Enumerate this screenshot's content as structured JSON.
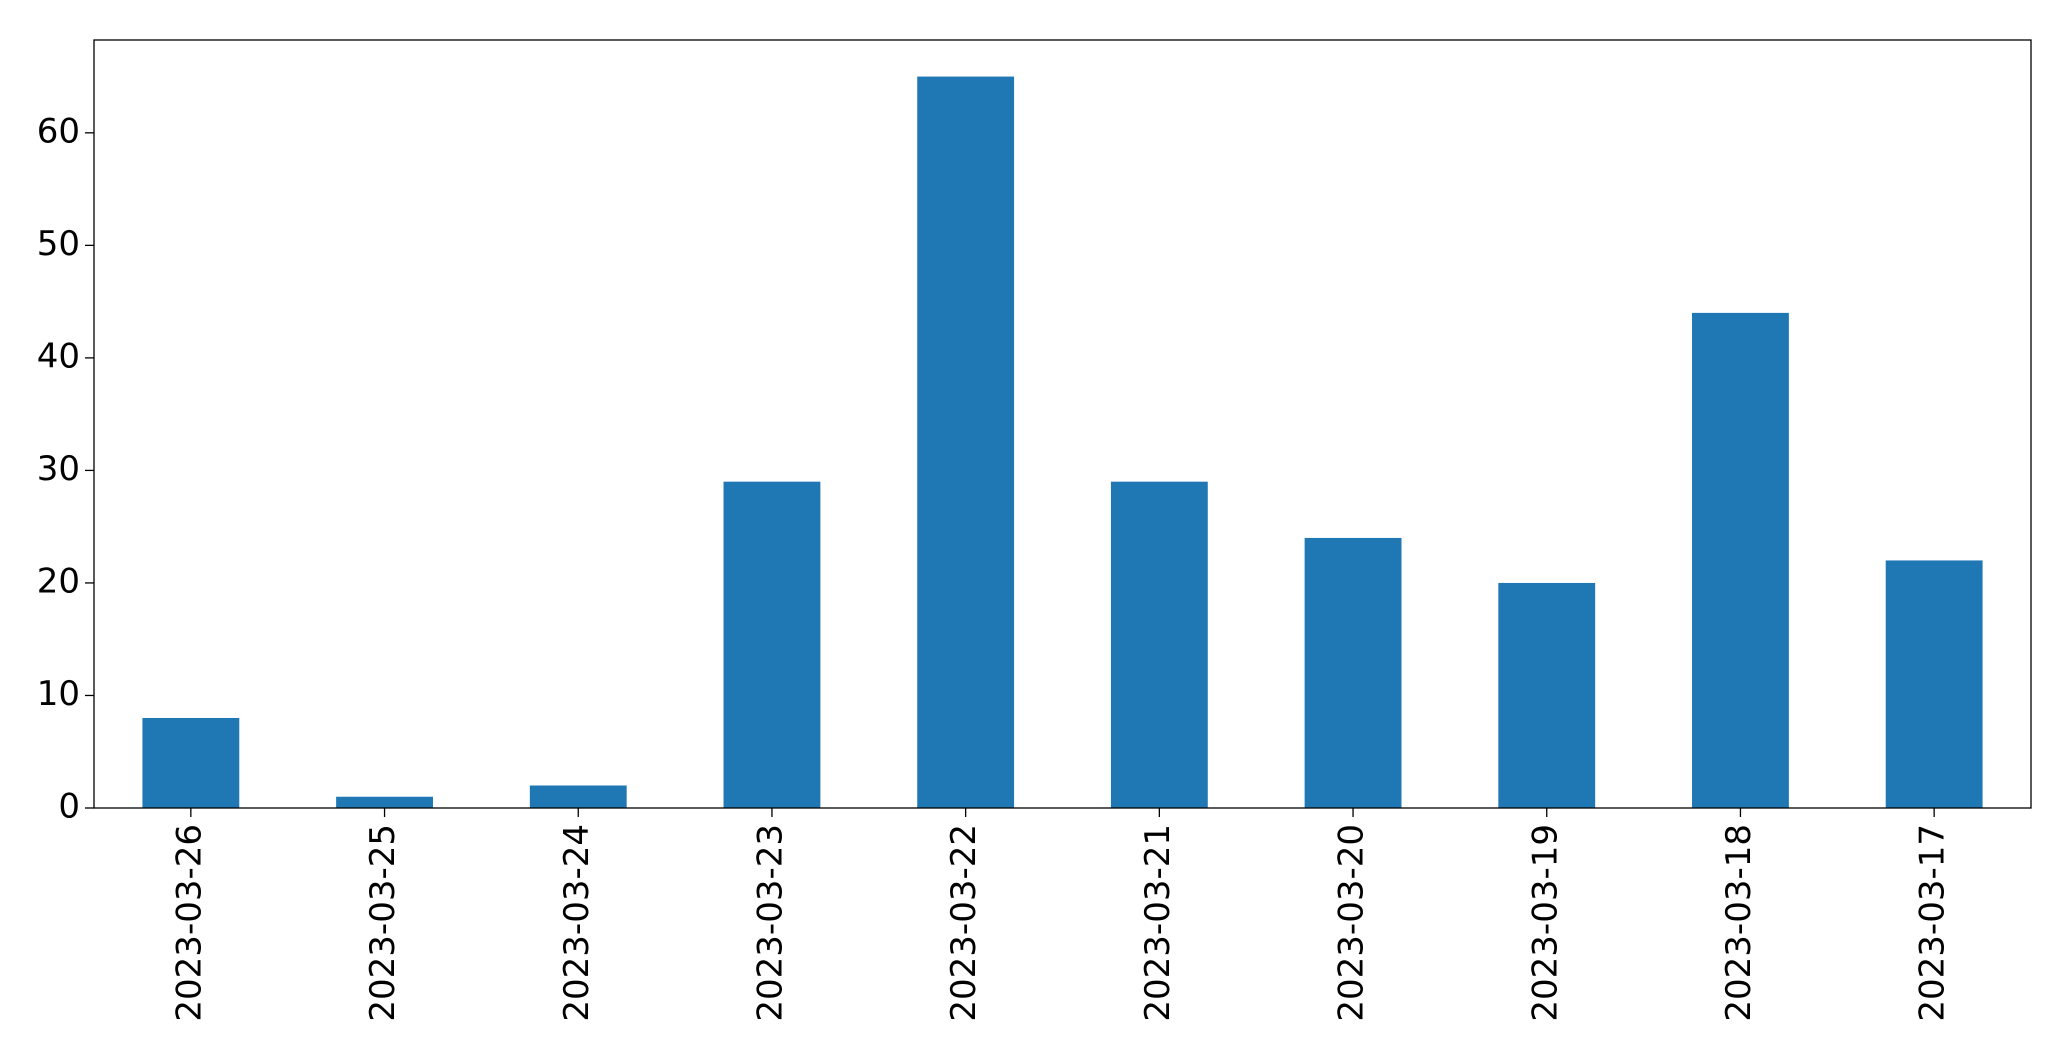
{
  "chart_data": {
    "type": "bar",
    "categories": [
      "2023-03-26",
      "2023-03-25",
      "2023-03-24",
      "2023-03-23",
      "2023-03-22",
      "2023-03-21",
      "2023-03-20",
      "2023-03-19",
      "2023-03-18",
      "2023-03-17"
    ],
    "values": [
      8,
      1,
      2,
      29,
      65,
      29,
      24,
      20,
      44,
      22
    ],
    "color": "#1f77b4",
    "ylim": [
      0,
      68.25
    ],
    "yticks": [
      0,
      10,
      20,
      30,
      40,
      50,
      60
    ],
    "grid": false
  }
}
